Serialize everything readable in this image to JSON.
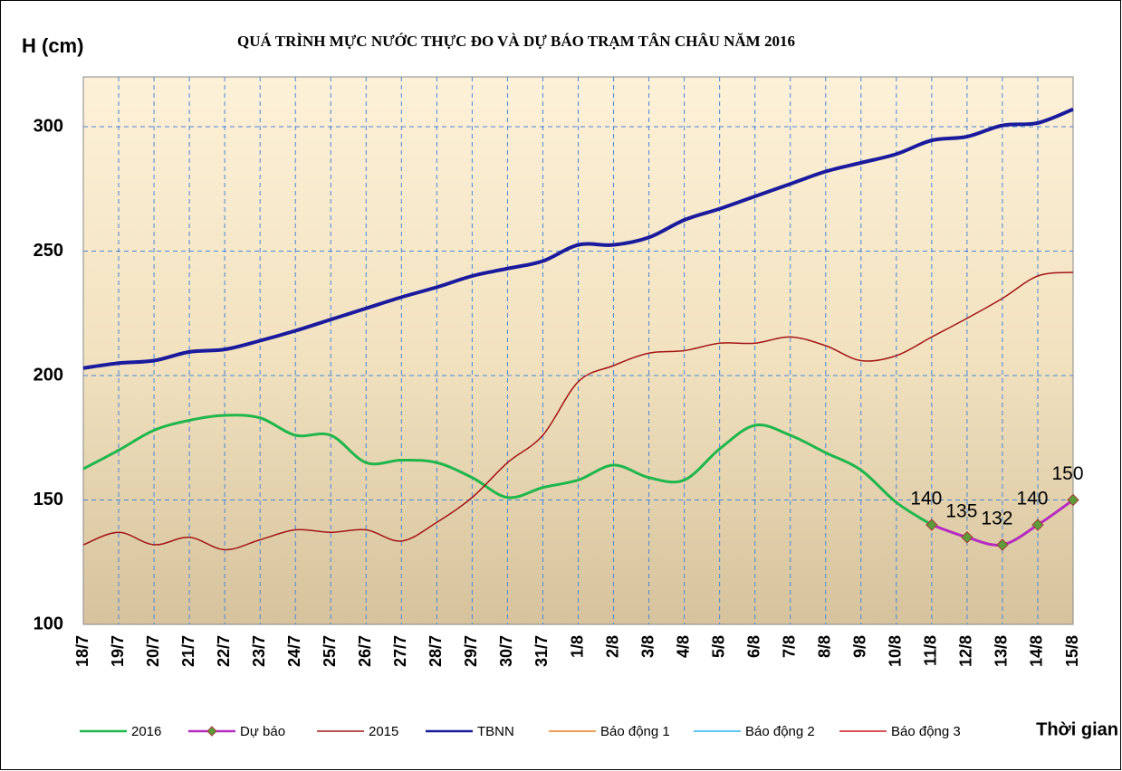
{
  "chart_data": {
    "type": "line",
    "title": "QUÁ TRÌNH MỰC NƯỚC THỰC ĐO VÀ DỰ BÁO TRẠM TÂN CHÂU NĂM 2016",
    "y_label": "H (cm)",
    "x_label": "Thời gian",
    "categories": [
      "18/7",
      "19/7",
      "20/7",
      "21/7",
      "22/7",
      "23/7",
      "24/7",
      "25/7",
      "26/7",
      "27/7",
      "28/7",
      "29/7",
      "30/7",
      "31/7",
      "1/8",
      "2/8",
      "3/8",
      "4/8",
      "5/8",
      "6/8",
      "7/8",
      "8/8",
      "9/8",
      "10/8",
      "11/8",
      "12/8",
      "13/8",
      "14/8",
      "15/8"
    ],
    "ylim": [
      100,
      320
    ],
    "yticks": [
      100,
      150,
      200,
      250,
      300
    ],
    "grid": true,
    "legend": "bottom",
    "series": [
      {
        "name": "2016",
        "color": "#1fb64c",
        "width": 3,
        "values": [
          162.5,
          170,
          178,
          182,
          184,
          183,
          176,
          176,
          165,
          166,
          165,
          159,
          151,
          155,
          158,
          164,
          159,
          158,
          170.5,
          180,
          176,
          169,
          162,
          149,
          140,
          null,
          null,
          null,
          null
        ]
      },
      {
        "name": "Dự báo",
        "color": "#b52cc0",
        "width": 3,
        "marker": "diamond",
        "show_labels": true,
        "values": [
          null,
          null,
          null,
          null,
          null,
          null,
          null,
          null,
          null,
          null,
          null,
          null,
          null,
          null,
          null,
          null,
          null,
          null,
          null,
          null,
          null,
          null,
          null,
          null,
          140,
          135,
          132,
          140,
          150
        ]
      },
      {
        "name": "2015",
        "color": "#a31515",
        "width": 1.5,
        "values": [
          132,
          137,
          132,
          135,
          130,
          134,
          138,
          137,
          138,
          133.5,
          141,
          151,
          165,
          176,
          197.5,
          204,
          209,
          210,
          213,
          213,
          215.5,
          212,
          206,
          208,
          215.5,
          223,
          231,
          240,
          241.5
        ]
      },
      {
        "name": "TBNN",
        "color": "#1a1a9c",
        "width": 4,
        "values": [
          203,
          205,
          206,
          209.5,
          210.5,
          214,
          218,
          222.5,
          227,
          231.5,
          235.5,
          240,
          243,
          246,
          252.5,
          252.5,
          255.5,
          262.5,
          267,
          272,
          277,
          282,
          285.5,
          289,
          294.5,
          296,
          300.5,
          301.5,
          307
        ]
      },
      {
        "name": "Báo động 1",
        "color": "#e8801e",
        "width": 1.5,
        "values": [
          null,
          null,
          null,
          null,
          null,
          null,
          null,
          null,
          null,
          null,
          null,
          null,
          null,
          null,
          null,
          null,
          null,
          null,
          null,
          null,
          null,
          null,
          null,
          null,
          null,
          null,
          null,
          null,
          null
        ]
      },
      {
        "name": "Báo động 2",
        "color": "#29b3e8",
        "width": 1.5,
        "values": [
          null,
          null,
          null,
          null,
          null,
          null,
          null,
          null,
          null,
          null,
          null,
          null,
          null,
          null,
          null,
          null,
          null,
          null,
          null,
          null,
          null,
          null,
          null,
          null,
          null,
          null,
          null,
          null,
          null
        ]
      },
      {
        "name": "Báo động 3",
        "color": "#c81e1e",
        "width": 1.5,
        "values": [
          null,
          null,
          null,
          null,
          null,
          null,
          null,
          null,
          null,
          null,
          null,
          null,
          null,
          null,
          null,
          null,
          null,
          null,
          null,
          null,
          null,
          null,
          null,
          null,
          null,
          null,
          null,
          null,
          null
        ]
      }
    ]
  }
}
